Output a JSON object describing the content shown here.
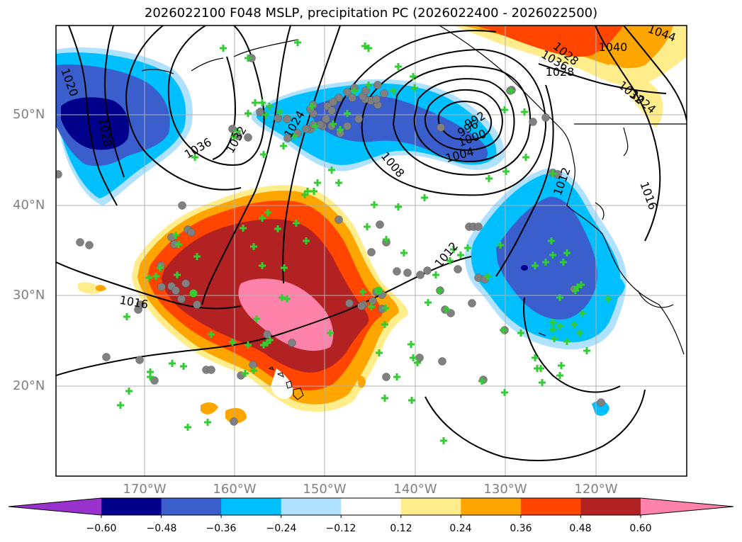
{
  "title": "2026022100 F048 MSLP, precipitation PC (2026022400 - 2026022500)",
  "lat_labels": [
    "50°N",
    "40°N",
    "30°N",
    "20°N"
  ],
  "lon_labels": [
    "170°W",
    "160°W",
    "150°W",
    "140°W",
    "130°W",
    "120°W"
  ],
  "isobar_labels": [
    "1020",
    "1028",
    "1036",
    "1032",
    "1024",
    "1008",
    "1004",
    "1000",
    "996",
    "992",
    "1016",
    "1012",
    "1028",
    "1040",
    "1036",
    "1028",
    "1032",
    "1024",
    "1044",
    "1012",
    "1016"
  ],
  "colorbar": {
    "tick_labels": [
      "−0.60",
      "−0.48",
      "−0.36",
      "−0.24",
      "−0.12",
      "0.12",
      "0.24",
      "0.36",
      "0.48",
      "0.60"
    ],
    "colors": [
      "#9932cc",
      "#00008b",
      "#3a5fcd",
      "#00bfff",
      "#b0e2ff",
      "#ffffff",
      "#ffec8b",
      "#ffa500",
      "#ff4500",
      "#b22222",
      "#ff82ab"
    ]
  },
  "colors": {
    "frame": "#000000",
    "grid": "#b0b0b0",
    "marker_fill": "#32cd32",
    "marker_edge": "#808080"
  }
}
